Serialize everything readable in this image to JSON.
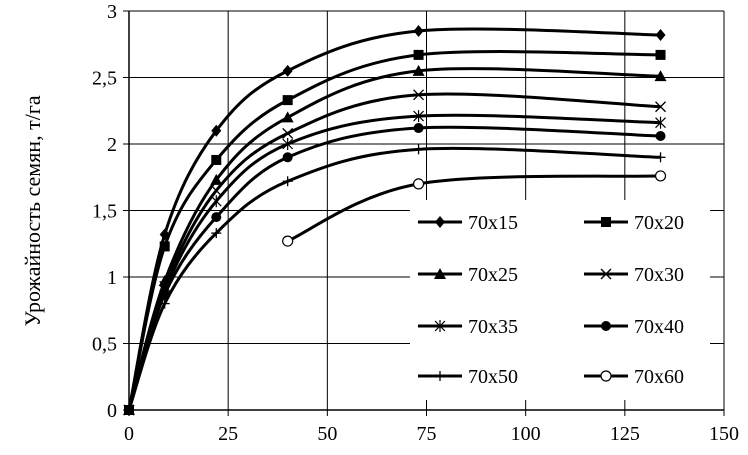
{
  "chart_data": {
    "type": "line",
    "title": "",
    "xlabel": "",
    "ylabel": "Урожайность семян, т/га",
    "xlim": [
      0,
      150
    ],
    "ylim": [
      0,
      3
    ],
    "xticks": [
      "0",
      "25",
      "50",
      "75",
      "100",
      "125",
      "150"
    ],
    "yticks": [
      "0",
      "0,5",
      "1",
      "1,5",
      "2",
      "2,5",
      "3"
    ],
    "grid": true,
    "legend": "bottom-right, inside plot, 2 columns",
    "series": [
      {
        "name": "70х15",
        "marker": "diamond",
        "x": [
          0,
          9,
          22,
          40,
          73,
          134
        ],
        "y": [
          0,
          1.32,
          2.1,
          2.55,
          2.85,
          2.82
        ]
      },
      {
        "name": "70х20",
        "marker": "square",
        "x": [
          0,
          9,
          22,
          40,
          73,
          134
        ],
        "y": [
          0,
          1.23,
          1.88,
          2.33,
          2.67,
          2.67
        ]
      },
      {
        "name": "70х25",
        "marker": "triangle",
        "x": [
          0,
          9,
          22,
          40,
          73,
          134
        ],
        "y": [
          0,
          0.97,
          1.73,
          2.2,
          2.55,
          2.51
        ]
      },
      {
        "name": "70х30",
        "marker": "x",
        "x": [
          0,
          9,
          22,
          40,
          73,
          134
        ],
        "y": [
          0,
          0.93,
          1.65,
          2.08,
          2.37,
          2.28
        ]
      },
      {
        "name": "70х35",
        "marker": "asterisk",
        "x": [
          0,
          9,
          22,
          40,
          73,
          134
        ],
        "y": [
          0,
          0.9,
          1.57,
          2.0,
          2.21,
          2.16
        ]
      },
      {
        "name": "70х40",
        "marker": "circle",
        "x": [
          0,
          9,
          22,
          40,
          73,
          134
        ],
        "y": [
          0,
          0.87,
          1.45,
          1.9,
          2.12,
          2.06
        ]
      },
      {
        "name": "70х50",
        "marker": "plus",
        "x": [
          0,
          9,
          22,
          40,
          73,
          134
        ],
        "y": [
          0,
          0.8,
          1.33,
          1.72,
          1.96,
          1.9
        ]
      },
      {
        "name": "70х60",
        "marker": "open-circle",
        "x": [
          40,
          73,
          134
        ],
        "y": [
          1.27,
          1.7,
          1.76
        ]
      }
    ]
  }
}
